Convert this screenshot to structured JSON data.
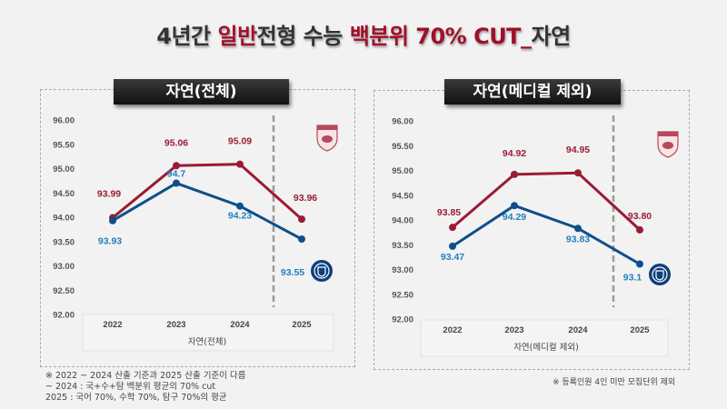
{
  "title": {
    "part1": "4년간 ",
    "part2": "일반",
    "part3": "전형 수능 ",
    "part4": "백분위 70% CUT_",
    "part5": "자연"
  },
  "colors": {
    "korea": "#9b1b34",
    "yonsei": "#0d4f8b",
    "yonsei_label": "#1f7fc0"
  },
  "chart_data": [
    {
      "type": "line",
      "title": "자연(전체)",
      "xlabel": "자연(전체)",
      "categories": [
        "2022",
        "2023",
        "2024",
        "2025"
      ],
      "ylim": [
        92,
        96
      ],
      "yticks": [
        "96.00",
        "95.50",
        "95.00",
        "94.50",
        "94.00",
        "93.50",
        "93.00",
        "92.50",
        "92.00"
      ],
      "series": [
        {
          "values": [
            93.99,
            95.06,
            95.09,
            93.96
          ],
          "labels": [
            "93.99",
            "95.06",
            "95.09",
            "93.96"
          ],
          "color": "#9b1b34",
          "logo": "korea-university-crest"
        },
        {
          "values": [
            93.93,
            94.7,
            94.23,
            93.55
          ],
          "labels": [
            "93.93",
            "94.7",
            "94.23",
            "93.55"
          ],
          "color": "#0d4f8b",
          "logo": "yonsei-university-emblem"
        }
      ],
      "divider": "between 2024 and 2025 (dashed)",
      "grid": false
    },
    {
      "type": "line",
      "title": "자연(메디컬 제외)",
      "xlabel": "자연(메디컬 제외)",
      "categories": [
        "2022",
        "2023",
        "2024",
        "2025"
      ],
      "ylim": [
        92,
        96
      ],
      "yticks": [
        "96.00",
        "95.50",
        "95.00",
        "94.50",
        "94.00",
        "93.50",
        "93.00",
        "92.50",
        "92.00"
      ],
      "series": [
        {
          "values": [
            93.85,
            94.92,
            94.95,
            93.8
          ],
          "labels": [
            "93.85",
            "94.92",
            "94.95",
            "93.80"
          ],
          "color": "#9b1b34",
          "logo": "korea-university-crest"
        },
        {
          "values": [
            93.47,
            94.29,
            93.83,
            93.11
          ],
          "labels": [
            "93.47",
            "94.29",
            "93.83",
            "93.1"
          ],
          "color": "#0d4f8b",
          "logo": "yonsei-university-emblem"
        }
      ],
      "divider": "between 2024 and 2025 (dashed)",
      "grid": false
    }
  ],
  "notes": {
    "left": [
      "※ 2022 ~ 2024 산출 기준과 2025 산출 기준이 다름",
      "~ 2024 : 국+수+탐 백분위 평균의 70% cut",
      "2025 : 국어 70%, 수학 70%, 탐구 70%의 평균"
    ],
    "right": "※ 등록인원 4인 미만 모집단위 제외"
  }
}
